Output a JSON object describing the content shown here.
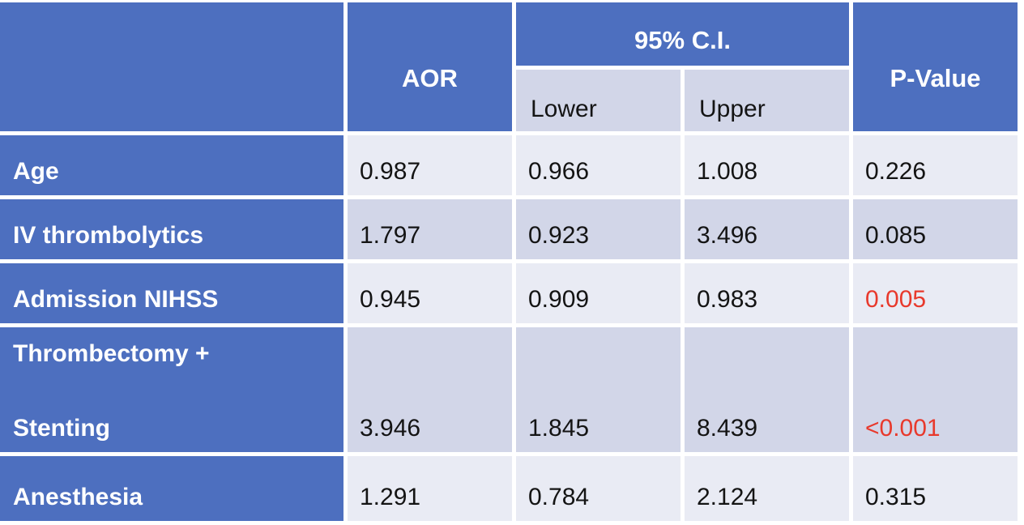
{
  "page": {
    "background": "#ffffff"
  },
  "ui_colors": {
    "header_blue": "#4d6fbf",
    "row_light": "#e9ebf4",
    "row_dark": "#d2d6e8",
    "subheader_bg": "#d2d6e8",
    "significant_red": "#e8392c",
    "grid_white": "#ffffff",
    "text_dark": "#141414",
    "text_white": "#ffffff"
  },
  "table": {
    "header": {
      "corner": "",
      "aor": "AOR",
      "ci_group": "95% C.I.",
      "ci_lower": "Lower",
      "ci_upper": "Upper",
      "pvalue": "P-Value"
    },
    "rows": [
      {
        "label_lines": [
          "Age"
        ],
        "aor": "0.987",
        "lower": "0.966",
        "upper": "1.008",
        "p": "0.226",
        "significant": false
      },
      {
        "label_lines": [
          "IV thrombolytics"
        ],
        "aor": "1.797",
        "lower": "0.923",
        "upper": "3.496",
        "p": "0.085",
        "significant": false
      },
      {
        "label_lines": [
          "Admission NIHSS"
        ],
        "aor": "0.945",
        "lower": "0.909",
        "upper": "0.983",
        "p": "0.005",
        "significant": true
      },
      {
        "label_lines": [
          "Thrombectomy +",
          "Stenting"
        ],
        "aor": "3.946",
        "lower": "1.845",
        "upper": "8.439",
        "p": "<0.001",
        "significant": true
      },
      {
        "label_lines": [
          "Anesthesia"
        ],
        "aor": "1.291",
        "lower": "0.784",
        "upper": "2.124",
        "p": "0.315",
        "significant": false
      }
    ]
  },
  "chart_data": {
    "type": "table",
    "columns": [
      "",
      "AOR",
      "95% C.I. Lower",
      "95% C.I. Upper",
      "P-Value"
    ],
    "rows": [
      [
        "Age",
        0.987,
        0.966,
        1.008,
        "0.226"
      ],
      [
        "IV thrombolytics",
        1.797,
        0.923,
        3.496,
        "0.085"
      ],
      [
        "Admission NIHSS",
        0.945,
        0.909,
        0.983,
        "0.005"
      ],
      [
        "Thrombectomy + Stenting",
        3.946,
        1.845,
        8.439,
        "<0.001"
      ],
      [
        "Anesthesia",
        1.291,
        0.784,
        2.124,
        "0.315"
      ]
    ],
    "red_p_value_row_indices": [
      2,
      3
    ],
    "layout_hints": {
      "first_column_style": "blue accent with white bold text",
      "banding": "alternating light/dark lavender data rows",
      "merged_cells": [
        "AOR spans 2 header rows",
        "95% C.I. spans Lower+Upper columns",
        "P-Value spans 2 header rows"
      ]
    }
  }
}
